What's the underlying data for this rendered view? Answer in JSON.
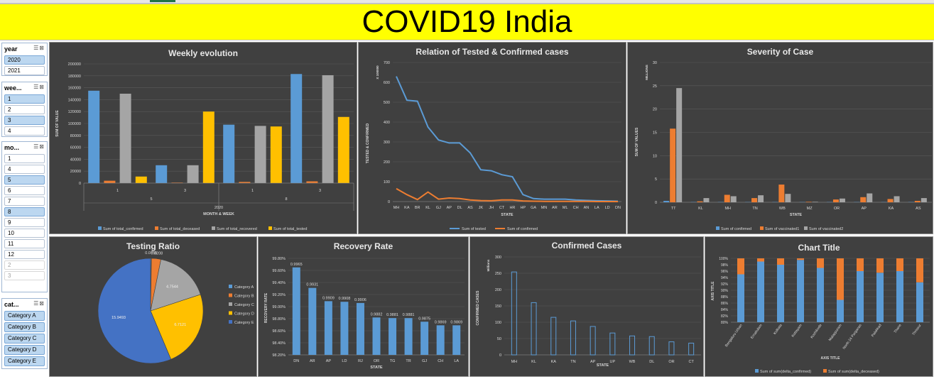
{
  "header": {
    "title": "COVID19 India"
  },
  "slicers": {
    "year": {
      "label": "year",
      "items": [
        {
          "label": "2020",
          "selected": true
        },
        {
          "label": "2021",
          "selected": false
        }
      ]
    },
    "week": {
      "label": "wee...",
      "items": [
        {
          "label": "1",
          "selected": true
        },
        {
          "label": "2",
          "selected": false
        },
        {
          "label": "3",
          "selected": true
        },
        {
          "label": "4",
          "selected": false
        }
      ]
    },
    "month": {
      "label": "mo...",
      "items": [
        {
          "label": "1",
          "selected": false
        },
        {
          "label": "4",
          "selected": false
        },
        {
          "label": "5",
          "selected": true
        },
        {
          "label": "6",
          "selected": false
        },
        {
          "label": "7",
          "selected": false
        },
        {
          "label": "8",
          "selected": true
        },
        {
          "label": "9",
          "selected": false
        },
        {
          "label": "10",
          "selected": false
        },
        {
          "label": "11",
          "selected": false
        },
        {
          "label": "12",
          "selected": false
        },
        {
          "label": "2",
          "selected": false,
          "dim": true
        },
        {
          "label": "3",
          "selected": false,
          "dim": true
        }
      ]
    },
    "category": {
      "label": "cat...",
      "items": [
        {
          "label": "Category A"
        },
        {
          "label": "Category B"
        },
        {
          "label": "Category C"
        },
        {
          "label": "Category D"
        },
        {
          "label": "Category E"
        }
      ]
    }
  },
  "chart_data": [
    {
      "type": "bar",
      "title": "Weekly evolution",
      "xlabel": "MONTH & WEEK",
      "ylabel": "SUM OF VALUE",
      "ylim": [
        0,
        200000
      ],
      "yticks": [
        "0",
        "20000",
        "40000",
        "60000",
        "80000",
        "100000",
        "120000",
        "140000",
        "160000",
        "180000",
        "200000"
      ],
      "categories": [
        "1",
        "3",
        "1",
        "3"
      ],
      "months": [
        "5",
        "8"
      ],
      "year": "2020",
      "series": [
        {
          "name": "Sum of total_confirmed",
          "color": "#5b9bd5",
          "values": [
            155000,
            30000,
            98000,
            183000
          ]
        },
        {
          "name": "Sum of total_deceased",
          "color": "#ed7d31",
          "values": [
            4000,
            800,
            2000,
            3000
          ]
        },
        {
          "name": "Sum of total_recovered",
          "color": "#a5a5a5",
          "values": [
            150000,
            30000,
            96000,
            181000
          ]
        },
        {
          "name": "Sum of total_tested",
          "color": "#ffc000",
          "values": [
            11000,
            120000,
            95000,
            111000
          ]
        }
      ]
    },
    {
      "type": "line",
      "title": "Relation of Tested & Confirmed cases",
      "xlabel": "STATE",
      "ylabel": "TESTED & CONFIRMED",
      "unit_label": "X 100000",
      "ylim": [
        0,
        700
      ],
      "yticks": [
        "0",
        "100",
        "200",
        "300",
        "400",
        "500",
        "600",
        "700"
      ],
      "categories": [
        "MH",
        "KA",
        "BR",
        "KL",
        "GJ",
        "AP",
        "DL",
        "AS",
        "JK",
        "JH",
        "CT",
        "HR",
        "HP",
        "GA",
        "MN",
        "AR",
        "ML",
        "CH",
        "AN",
        "LA",
        "LD",
        "DN"
      ],
      "series": [
        {
          "name": "Sum of tested",
          "color": "#5b9bd5",
          "values": [
            630,
            510,
            505,
            375,
            310,
            295,
            295,
            245,
            160,
            155,
            135,
            125,
            35,
            15,
            12,
            12,
            12,
            8,
            6,
            4,
            3,
            2
          ]
        },
        {
          "name": "Sum of confirmed",
          "color": "#ed7d31",
          "values": [
            65,
            35,
            10,
            48,
            12,
            18,
            15,
            8,
            5,
            4,
            8,
            8,
            3,
            2,
            1,
            1,
            1,
            1,
            1,
            0,
            0,
            0
          ]
        }
      ]
    },
    {
      "type": "bar",
      "title": "Severity of Case",
      "xlabel": "STATE",
      "ylabel": "SUM OF VALUES",
      "unit_label": "MILLIONS",
      "ylim": [
        0,
        30
      ],
      "yticks": [
        "0",
        "5",
        "10",
        "15",
        "20",
        "25",
        "30"
      ],
      "categories": [
        "TT",
        "KL",
        "MH",
        "TN",
        "WB",
        "MZ",
        "OR",
        "AP",
        "KA",
        "AS"
      ],
      "series": [
        {
          "name": "Sum of confirmed",
          "color": "#5b9bd5",
          "values": [
            0.3,
            0.05,
            0.05,
            0.03,
            0.02,
            0.01,
            0.01,
            0.02,
            0.03,
            0.01
          ]
        },
        {
          "name": "Sum of vaccinated1",
          "color": "#ed7d31",
          "values": [
            15.8,
            0.2,
            1.6,
            0.9,
            3.8,
            0.1,
            0.6,
            1.1,
            0.7,
            0.3
          ]
        },
        {
          "name": "Sum of vaccinated2",
          "color": "#a5a5a5",
          "values": [
            24.5,
            0.9,
            1.3,
            1.5,
            1.8,
            0.1,
            0.8,
            1.9,
            1.3,
            0.9
          ]
        }
      ]
    },
    {
      "type": "pie",
      "title": "Testing Ratio",
      "series": [
        {
          "name": "Category A",
          "color": "#5b9bd5",
          "value": 0.0755,
          "label": "0.0755"
        },
        {
          "name": "Category B",
          "color": "#ed7d31",
          "value": 0.8208,
          "label": "0.8208"
        },
        {
          "name": "Category C",
          "color": "#a5a5a5",
          "value": 4.7544,
          "label": "4.7544"
        },
        {
          "name": "Category D",
          "color": "#ffc000",
          "value": 6.7121,
          "label": "6.7121"
        },
        {
          "name": "Category E",
          "color": "#4472c4",
          "value": 15.9493,
          "label": "15.9493"
        }
      ]
    },
    {
      "type": "bar",
      "title": "Recovery Rate",
      "xlabel": "STATE",
      "ylabel": "RECOVERY RATE",
      "ylim": [
        98.2,
        99.8
      ],
      "yticks": [
        "98.20%",
        "98.40%",
        "98.60%",
        "98.80%",
        "99.00%",
        "99.20%",
        "99.40%",
        "99.60%",
        "99.80%"
      ],
      "categories": [
        "DN",
        "AR",
        "AP",
        "LD",
        "RJ",
        "OR",
        "TG",
        "TR",
        "GJ",
        "CH",
        "LA"
      ],
      "values": [
        99.65,
        99.31,
        99.09,
        99.08,
        99.06,
        98.82,
        98.81,
        98.81,
        98.75,
        98.69,
        98.69
      ],
      "data_labels": [
        "0.9965",
        "0.9931",
        "0.9909",
        "0.9908",
        "0.9906",
        "0.9882",
        "0.9881",
        "0.9881",
        "0.9875",
        "0.9869",
        "0.9869"
      ],
      "color": "#5b9bd5"
    },
    {
      "type": "bar",
      "title": "Confirmed Cases",
      "xlabel": "STATE",
      "ylabel": "CONFIRMED CASES",
      "unit_label": "Millions",
      "ylim": [
        0,
        300
      ],
      "yticks": [
        "0",
        "50",
        "100",
        "150",
        "200",
        "250",
        "300"
      ],
      "categories": [
        "MH",
        "KL",
        "KA",
        "TN",
        "AP",
        "UP",
        "WB",
        "DL",
        "OR",
        "CT"
      ],
      "values": [
        254,
        160,
        115,
        104,
        87,
        67,
        58,
        56,
        40,
        36
      ],
      "color": "#5b9bd5"
    },
    {
      "type": "bar",
      "title": "Chart Title",
      "xlabel": "AXIS TITLE",
      "ylabel": "AXIS TITLE",
      "ylim": [
        80,
        100
      ],
      "yticks": [
        "80%",
        "82%",
        "84%",
        "86%",
        "88%",
        "90%",
        "92%",
        "94%",
        "96%",
        "98%",
        "100%"
      ],
      "categories": [
        "Bengaluru Urban",
        "Ernakulam",
        "Kolkata",
        "Kottayam",
        "Kozhikode",
        "Malappuram",
        "North 24 Parganas",
        "Palakkad",
        "Thane",
        "Thrissur"
      ],
      "series": [
        {
          "name": "Sum of sum(delta_confirmed)",
          "color": "#5b9bd5",
          "values": [
            95,
            99,
            98,
            99.5,
            97,
            87,
            96,
            95.5,
            96,
            92.5
          ]
        },
        {
          "name": "Sum of sum(delta_deceased)",
          "color": "#ed7d31",
          "values": [
            5,
            1,
            2,
            0.5,
            3,
            13,
            4,
            4.5,
            4,
            7.5
          ]
        }
      ]
    }
  ]
}
